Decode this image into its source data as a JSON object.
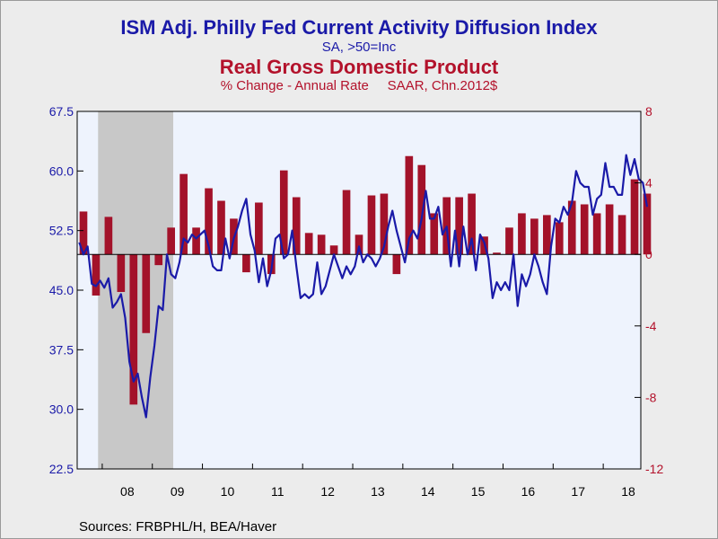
{
  "titles": {
    "line1": "ISM Adj. Philly Fed Current Activity Diffusion Index",
    "line2": "SA, >50=Inc",
    "line3": "Real Gross Domestic Product",
    "line4": "% Change - Annual Rate     SAAR, Chn.2012$"
  },
  "source": "Sources:  FRBPHL/H, BEA/Haver",
  "colors": {
    "line": "#1a1aa8",
    "bars": "#a3122a",
    "plot_bg": "#eef3fd",
    "recession": "#c8c8c8"
  },
  "chart_data": {
    "type": "bar+line",
    "x_range": [
      2007.5,
      2018.75
    ],
    "x_tick_labels": [
      "08",
      "09",
      "10",
      "11",
      "12",
      "13",
      "14",
      "15",
      "16",
      "17",
      "18"
    ],
    "left_axis": {
      "ylim": [
        22.5,
        67.5
      ],
      "ticks": [
        "22.5",
        "30.0",
        "37.5",
        "45.0",
        "52.5",
        "60.0",
        "67.5"
      ]
    },
    "right_axis": {
      "ylim": [
        -12,
        8
      ],
      "ticks": [
        "-12",
        "-8",
        "-4",
        "0",
        "4",
        "8"
      ]
    },
    "recession": [
      2007.917,
      2009.417
    ],
    "gdp_quarterly": {
      "start": 2007.5,
      "values": [
        2.4,
        -2.3,
        2.1,
        -2.1,
        -8.4,
        -4.4,
        -0.6,
        1.5,
        4.5,
        1.5,
        3.7,
        3.0,
        2.0,
        -1.0,
        2.9,
        -1.1,
        4.7,
        3.2,
        1.2,
        1.1,
        0.5,
        3.6,
        1.1,
        3.3,
        3.4,
        -1.1,
        5.5,
        5.0,
        2.3,
        3.2,
        3.2,
        3.4,
        1.0,
        0.1,
        1.5,
        2.3,
        2.0,
        2.2,
        1.8,
        3.0,
        2.8,
        2.3,
        2.8,
        2.2,
        4.2,
        3.4
      ]
    },
    "philly_fed_monthly": {
      "start": 2007.5,
      "values": [
        51.0,
        49.5,
        50.5,
        45.8,
        45.5,
        46.2,
        45.3,
        46.5,
        42.8,
        43.5,
        44.5,
        41.5,
        36.0,
        33.5,
        34.5,
        31.5,
        29.0,
        34.0,
        38.0,
        43.0,
        42.5,
        49.5,
        47.0,
        46.5,
        48.5,
        51.5,
        51.0,
        52.0,
        51.5,
        52.0,
        52.5,
        50.5,
        48.0,
        47.5,
        47.5,
        51.5,
        49.0,
        51.5,
        53.0,
        55.0,
        56.5,
        52.0,
        50.0,
        46.0,
        49.0,
        45.5,
        47.5,
        51.5,
        52.0,
        49.0,
        49.5,
        52.5,
        48.0,
        44.0,
        44.5,
        44.0,
        44.5,
        48.5,
        44.5,
        45.5,
        47.5,
        49.5,
        48.0,
        46.5,
        48.0,
        47.0,
        48.0,
        50.5,
        48.5,
        49.5,
        49.0,
        48.0,
        49.0,
        50.5,
        53.0,
        55.0,
        52.5,
        50.5,
        48.5,
        51.5,
        52.5,
        51.5,
        54.0,
        57.5,
        54.0,
        54.0,
        55.5,
        52.0,
        53.0,
        48.0,
        52.5,
        48.0,
        53.0,
        49.5,
        51.5,
        47.5,
        52.0,
        51.0,
        49.0,
        44.0,
        46.0,
        45.0,
        46.0,
        45.0,
        49.5,
        43.0,
        47.0,
        45.5,
        47.0,
        49.5,
        48.0,
        46.0,
        44.5,
        50.5,
        54.0,
        53.5,
        55.5,
        54.5,
        56.0,
        60.0,
        58.5,
        58.0,
        58.0,
        54.5,
        56.5,
        57.0,
        61.0,
        58.0,
        58.0,
        57.0,
        57.0,
        62.0,
        59.5,
        61.5,
        59.0,
        58.5,
        55.5
      ]
    }
  }
}
